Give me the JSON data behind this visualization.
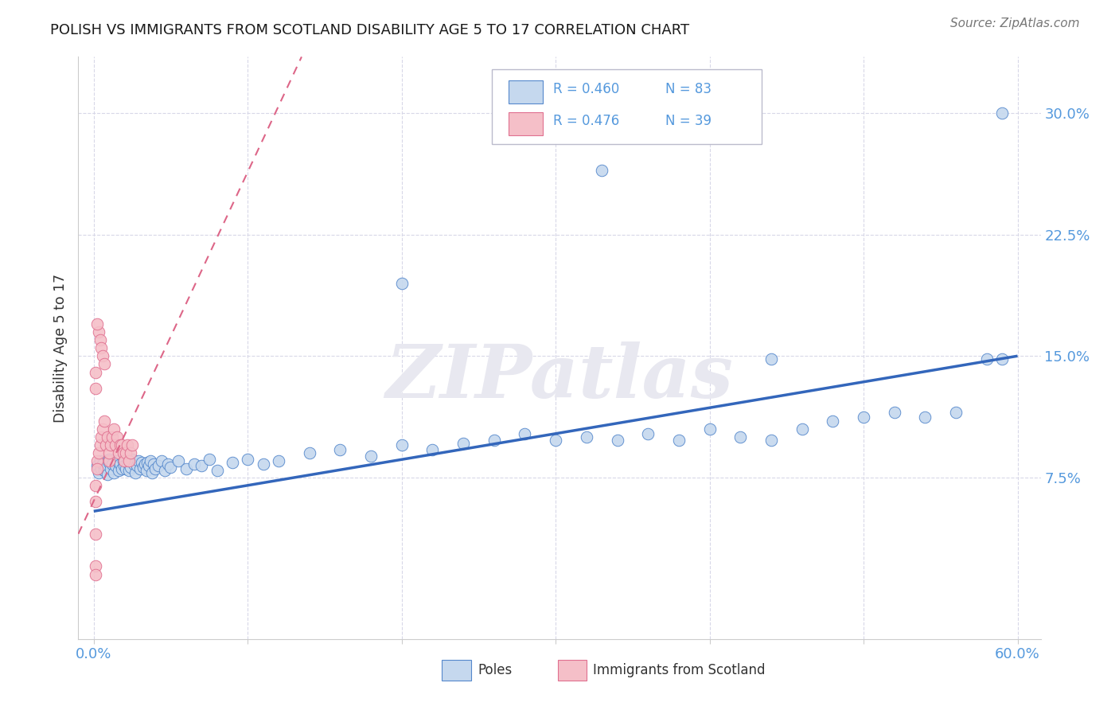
{
  "title": "POLISH VS IMMIGRANTS FROM SCOTLAND DISABILITY AGE 5 TO 17 CORRELATION CHART",
  "source": "Source: ZipAtlas.com",
  "ylabel": "Disability Age 5 to 17",
  "watermark": "ZIPatlas",
  "xlim": [
    -0.01,
    0.615
  ],
  "ylim": [
    -0.025,
    0.335
  ],
  "xtick_positions": [
    0.0,
    0.1,
    0.2,
    0.3,
    0.4,
    0.5,
    0.6
  ],
  "xticklabels": [
    "0.0%",
    "",
    "",
    "",
    "",
    "",
    "60.0%"
  ],
  "ytick_positions": [
    0.075,
    0.15,
    0.225,
    0.3
  ],
  "ytick_labels": [
    "7.5%",
    "15.0%",
    "22.5%",
    "30.0%"
  ],
  "blue_fill": "#c5d8ee",
  "blue_edge": "#5588cc",
  "pink_fill": "#f5bfc8",
  "pink_edge": "#e07090",
  "line_blue_color": "#3366bb",
  "line_pink_color": "#dd6688",
  "grid_color": "#d8d8e8",
  "title_color": "#1a1a1a",
  "label_color": "#5599dd",
  "text_color": "#333333",
  "source_color": "#777777",
  "watermark_color": "#e8e8f0",
  "bg_color": "#ffffff",
  "blue_R": "R = 0.460",
  "blue_N": "N = 83",
  "pink_R": "R = 0.476",
  "pink_N": "N = 39",
  "blue_trend_x": [
    0.0,
    0.6
  ],
  "blue_trend_y": [
    0.054,
    0.15
  ],
  "pink_trend_x": [
    -0.01,
    0.135
  ],
  "pink_trend_y": [
    0.04,
    0.335
  ],
  "legend_label1": "Poles",
  "legend_label2": "Immigrants from Scotland",
  "poles_x": [
    0.002,
    0.003,
    0.004,
    0.005,
    0.006,
    0.007,
    0.008,
    0.009,
    0.01,
    0.01,
    0.011,
    0.012,
    0.013,
    0.014,
    0.015,
    0.016,
    0.017,
    0.018,
    0.019,
    0.02,
    0.021,
    0.022,
    0.023,
    0.024,
    0.025,
    0.026,
    0.027,
    0.028,
    0.029,
    0.03,
    0.031,
    0.032,
    0.033,
    0.034,
    0.035,
    0.036,
    0.037,
    0.038,
    0.039,
    0.04,
    0.042,
    0.044,
    0.046,
    0.048,
    0.05,
    0.055,
    0.06,
    0.065,
    0.07,
    0.075,
    0.08,
    0.09,
    0.1,
    0.11,
    0.12,
    0.14,
    0.16,
    0.18,
    0.2,
    0.22,
    0.24,
    0.26,
    0.28,
    0.3,
    0.32,
    0.34,
    0.36,
    0.38,
    0.4,
    0.42,
    0.44,
    0.46,
    0.48,
    0.5,
    0.52,
    0.54,
    0.56,
    0.58,
    0.59,
    0.59,
    0.33,
    0.44,
    0.2
  ],
  "poles_y": [
    0.082,
    0.078,
    0.085,
    0.08,
    0.083,
    0.079,
    0.081,
    0.077,
    0.084,
    0.086,
    0.08,
    0.083,
    0.078,
    0.082,
    0.085,
    0.079,
    0.083,
    0.08,
    0.085,
    0.082,
    0.08,
    0.084,
    0.079,
    0.081,
    0.086,
    0.083,
    0.078,
    0.082,
    0.085,
    0.08,
    0.084,
    0.081,
    0.083,
    0.079,
    0.084,
    0.082,
    0.085,
    0.078,
    0.083,
    0.08,
    0.082,
    0.085,
    0.079,
    0.083,
    0.081,
    0.085,
    0.08,
    0.083,
    0.082,
    0.086,
    0.079,
    0.084,
    0.086,
    0.083,
    0.085,
    0.09,
    0.092,
    0.088,
    0.095,
    0.092,
    0.096,
    0.098,
    0.102,
    0.098,
    0.1,
    0.098,
    0.102,
    0.098,
    0.105,
    0.1,
    0.098,
    0.105,
    0.11,
    0.112,
    0.115,
    0.112,
    0.115,
    0.148,
    0.3,
    0.148,
    0.265,
    0.148,
    0.195
  ],
  "scotland_x": [
    0.002,
    0.003,
    0.004,
    0.005,
    0.006,
    0.007,
    0.008,
    0.009,
    0.01,
    0.01,
    0.011,
    0.012,
    0.013,
    0.014,
    0.015,
    0.016,
    0.017,
    0.018,
    0.019,
    0.02,
    0.021,
    0.022,
    0.023,
    0.024,
    0.025,
    0.003,
    0.004,
    0.005,
    0.006,
    0.007,
    0.001,
    0.001,
    0.001,
    0.001,
    0.001,
    0.001,
    0.001,
    0.002,
    0.002
  ],
  "scotland_y": [
    0.085,
    0.09,
    0.095,
    0.1,
    0.105,
    0.11,
    0.095,
    0.1,
    0.085,
    0.09,
    0.095,
    0.1,
    0.105,
    0.095,
    0.1,
    0.09,
    0.095,
    0.095,
    0.09,
    0.085,
    0.09,
    0.095,
    0.085,
    0.09,
    0.095,
    0.165,
    0.16,
    0.155,
    0.15,
    0.145,
    0.02,
    0.04,
    0.06,
    0.07,
    0.015,
    0.13,
    0.14,
    0.17,
    0.08
  ]
}
